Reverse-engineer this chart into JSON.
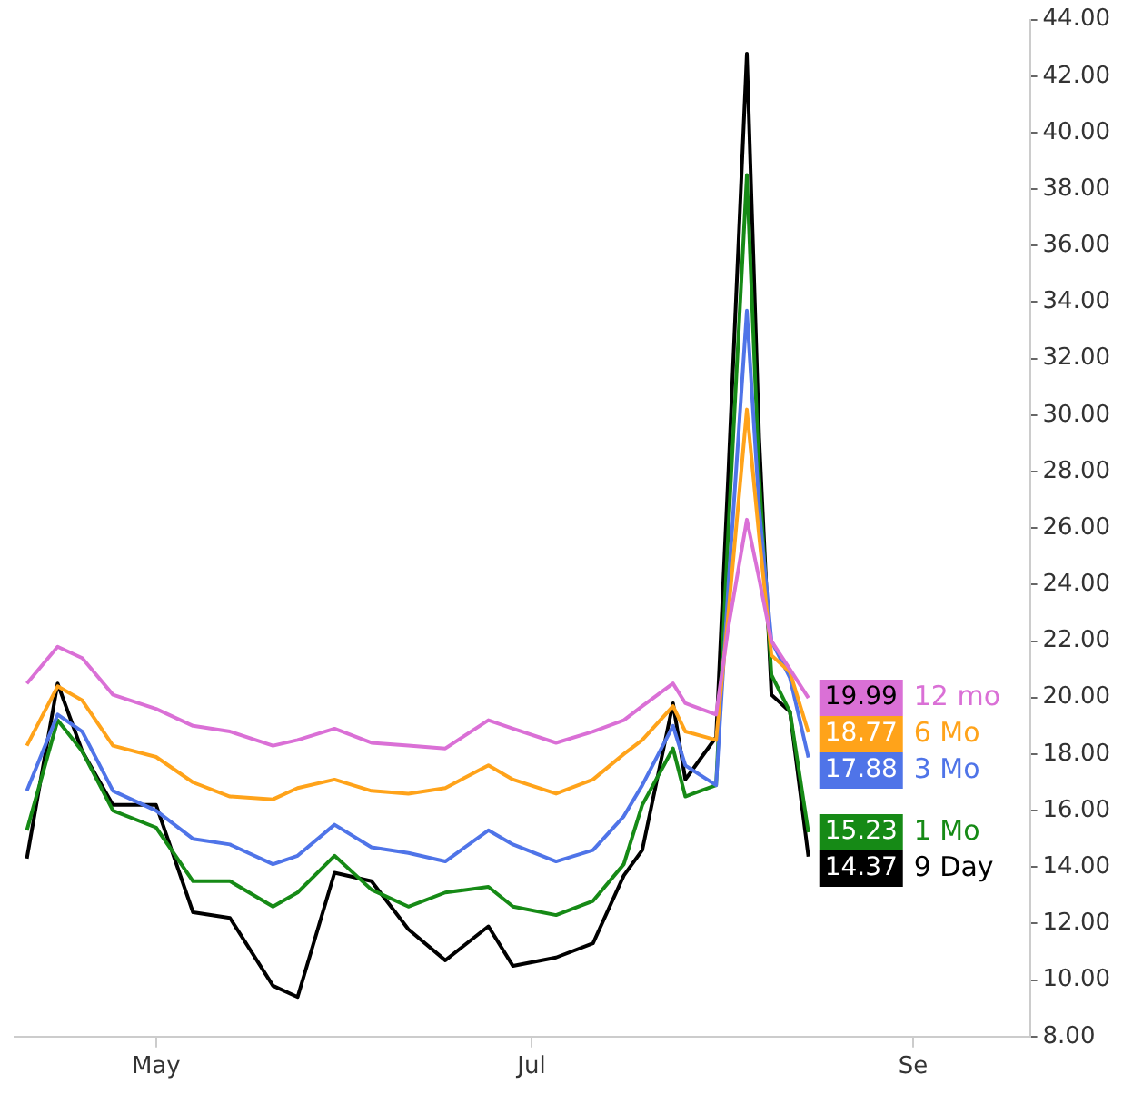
{
  "chart_data": {
    "type": "line",
    "legend": "right",
    "x": [
      "--04-10",
      "--04-15",
      "--04-19",
      "--04-24",
      "--05-01",
      "--05-07",
      "--05-13",
      "--05-20",
      "--05-24",
      "--05-30",
      "--06-05",
      "--06-11",
      "--06-17",
      "--06-24",
      "--06-28",
      "--07-05",
      "--07-11",
      "--07-16",
      "--07-19",
      "--07-24",
      "--07-26",
      "--07-31",
      "--08-02",
      "--08-05",
      "--08-07",
      "--08-09",
      "--08-12",
      "--08-15"
    ],
    "xlim": [
      "--04-08",
      "--09-20"
    ],
    "xticks": [
      {
        "value": "--05-01",
        "label": "May"
      },
      {
        "value": "--07-01",
        "label": "Jul"
      },
      {
        "value": "--09-01",
        "label": "Se"
      }
    ],
    "ylim": [
      8,
      44
    ],
    "yticks": [
      {
        "value": 8,
        "label": "8.00"
      },
      {
        "value": 10,
        "label": "10.00"
      },
      {
        "value": 12,
        "label": "12.00"
      },
      {
        "value": 14,
        "label": "14.00"
      },
      {
        "value": 16,
        "label": "16.00"
      },
      {
        "value": 18,
        "label": "18.00"
      },
      {
        "value": 20,
        "label": "20.00"
      },
      {
        "value": 22,
        "label": "22.00"
      },
      {
        "value": 24,
        "label": "24.00"
      },
      {
        "value": 26,
        "label": "26.00"
      },
      {
        "value": 28,
        "label": "28.00"
      },
      {
        "value": 30,
        "label": "30.00"
      },
      {
        "value": 32,
        "label": "32.00"
      },
      {
        "value": 34,
        "label": "34.00"
      },
      {
        "value": 36,
        "label": "36.00"
      },
      {
        "value": 38,
        "label": "38.00"
      },
      {
        "value": 40,
        "label": "40.00"
      },
      {
        "value": 42,
        "label": "42.00"
      },
      {
        "value": 44,
        "label": "44.00"
      }
    ],
    "series": [
      {
        "name": "12 mo",
        "color": "#da70d6",
        "values": [
          20.5,
          21.8,
          21.4,
          20.1,
          19.6,
          19.0,
          18.8,
          18.3,
          18.5,
          18.9,
          18.4,
          18.3,
          18.2,
          19.2,
          18.9,
          18.4,
          18.8,
          19.2,
          19.7,
          20.5,
          19.8,
          19.4,
          22.5,
          26.3,
          24.2,
          22.0,
          21.0,
          19.99
        ],
        "value_labels": [
          null,
          null,
          null,
          null,
          null,
          null,
          null,
          null,
          null,
          null,
          null,
          null,
          null,
          null,
          null,
          null,
          null,
          null,
          null,
          null,
          null,
          null,
          null,
          null,
          null,
          null,
          null,
          "19.99"
        ]
      },
      {
        "name": "6 Mo",
        "color": "#ffa31a",
        "values": [
          18.3,
          20.4,
          19.9,
          18.3,
          17.9,
          17.0,
          16.5,
          16.4,
          16.8,
          17.1,
          16.7,
          16.6,
          16.8,
          17.6,
          17.1,
          16.6,
          17.1,
          18.0,
          18.5,
          19.7,
          18.8,
          18.5,
          23.0,
          30.2,
          25.7,
          21.5,
          20.9,
          18.77
        ],
        "value_labels": [
          null,
          null,
          null,
          null,
          null,
          null,
          null,
          null,
          null,
          null,
          null,
          null,
          null,
          null,
          null,
          null,
          null,
          null,
          null,
          null,
          null,
          null,
          null,
          null,
          null,
          null,
          null,
          "18.77"
        ]
      },
      {
        "name": "3 Mo",
        "color": "#4f74e8",
        "values": [
          16.7,
          19.4,
          18.8,
          16.7,
          16.0,
          15.0,
          14.8,
          14.1,
          14.4,
          15.5,
          14.7,
          14.5,
          14.2,
          15.3,
          14.8,
          14.2,
          14.6,
          15.8,
          16.9,
          19.0,
          17.6,
          16.9,
          24.0,
          33.7,
          26.7,
          22.0,
          20.7,
          17.88
        ],
        "value_labels": [
          null,
          null,
          null,
          null,
          null,
          null,
          null,
          null,
          null,
          null,
          null,
          null,
          null,
          null,
          null,
          null,
          null,
          null,
          null,
          null,
          null,
          null,
          null,
          null,
          null,
          null,
          null,
          "17.88"
        ]
      },
      {
        "name": "1 Mo",
        "color": "#168a16",
        "values": [
          15.3,
          19.2,
          18.1,
          16.0,
          15.4,
          13.5,
          13.5,
          12.6,
          13.1,
          14.4,
          13.2,
          12.6,
          13.1,
          13.3,
          12.6,
          12.3,
          12.8,
          14.1,
          16.2,
          18.2,
          16.5,
          16.9,
          26.0,
          38.5,
          27.8,
          20.8,
          19.5,
          15.23
        ],
        "value_labels": [
          null,
          null,
          null,
          null,
          null,
          null,
          null,
          null,
          null,
          null,
          null,
          null,
          null,
          null,
          null,
          null,
          null,
          null,
          null,
          null,
          null,
          null,
          null,
          null,
          null,
          null,
          null,
          "15.23"
        ]
      },
      {
        "name": "9 Day",
        "color": "#000000",
        "values": [
          14.3,
          20.5,
          18.1,
          16.2,
          16.2,
          12.4,
          12.2,
          9.8,
          9.4,
          13.8,
          13.5,
          11.8,
          10.7,
          11.9,
          10.5,
          10.8,
          11.3,
          13.7,
          14.6,
          19.8,
          17.1,
          18.6,
          28.0,
          42.8,
          29.2,
          20.1,
          19.5,
          14.37
        ],
        "value_labels": [
          null,
          null,
          null,
          null,
          null,
          null,
          null,
          null,
          null,
          null,
          null,
          null,
          null,
          null,
          null,
          null,
          null,
          null,
          null,
          null,
          null,
          null,
          null,
          null,
          null,
          null,
          null,
          "14.37"
        ]
      }
    ]
  }
}
